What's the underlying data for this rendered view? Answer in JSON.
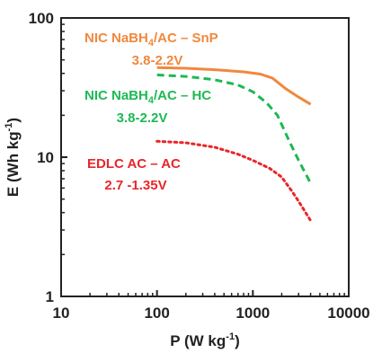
{
  "chart_data": {
    "type": "line",
    "x_scale": "log",
    "y_scale": "log",
    "xlim": [
      10,
      10000
    ],
    "ylim": [
      1,
      100
    ],
    "x_ticks": [
      10,
      100,
      1000,
      10000
    ],
    "y_ticks": [
      1,
      10,
      100
    ],
    "x_tick_labels": [
      "10",
      "100",
      "1000",
      "10000"
    ],
    "y_tick_labels": [
      "1",
      "10",
      "100"
    ],
    "xlabel": {
      "main": "P (W kg",
      "sup": "-1",
      "end": ")"
    },
    "ylabel": {
      "main": "E (Wh kg",
      "sup": "-1",
      "end": ")"
    },
    "grid": false,
    "series": [
      {
        "label_line1": {
          "pre": "NIC NaBH",
          "sub": "4",
          "post": "/AC – SnP"
        },
        "label_line2": "3.8-2.2V",
        "color": "#F0883E",
        "dash": "solid",
        "x": [
          100,
          200,
          400,
          800,
          1200,
          1600,
          2200,
          3000,
          4000
        ],
        "y": [
          44,
          43.5,
          42.5,
          41,
          39.5,
          37,
          31,
          27,
          24
        ]
      },
      {
        "label_line1": {
          "pre": "NIC NaBH",
          "sub": "4",
          "post": "/AC – HC"
        },
        "label_line2": "3.8-2.2V",
        "color": "#1DB954",
        "dash": "dashed",
        "x": [
          100,
          200,
          400,
          700,
          1000,
          1400,
          1800,
          2400,
          3000,
          4000
        ],
        "y": [
          39,
          38,
          36,
          33,
          29.5,
          24.5,
          20,
          13,
          9.5,
          6.5
        ]
      },
      {
        "label_line1": {
          "pre": "EDLC AC – AC",
          "sub": "",
          "post": ""
        },
        "label_line2": "2.7 -1.35V",
        "color": "#E8262B",
        "dash": "dotted",
        "x": [
          100,
          200,
          400,
          700,
          1000,
          1500,
          2000,
          2600,
          3200,
          4000
        ],
        "y": [
          13,
          12.7,
          11.8,
          10.5,
          9.5,
          8.3,
          7.2,
          5.6,
          4.5,
          3.5
        ]
      }
    ]
  }
}
